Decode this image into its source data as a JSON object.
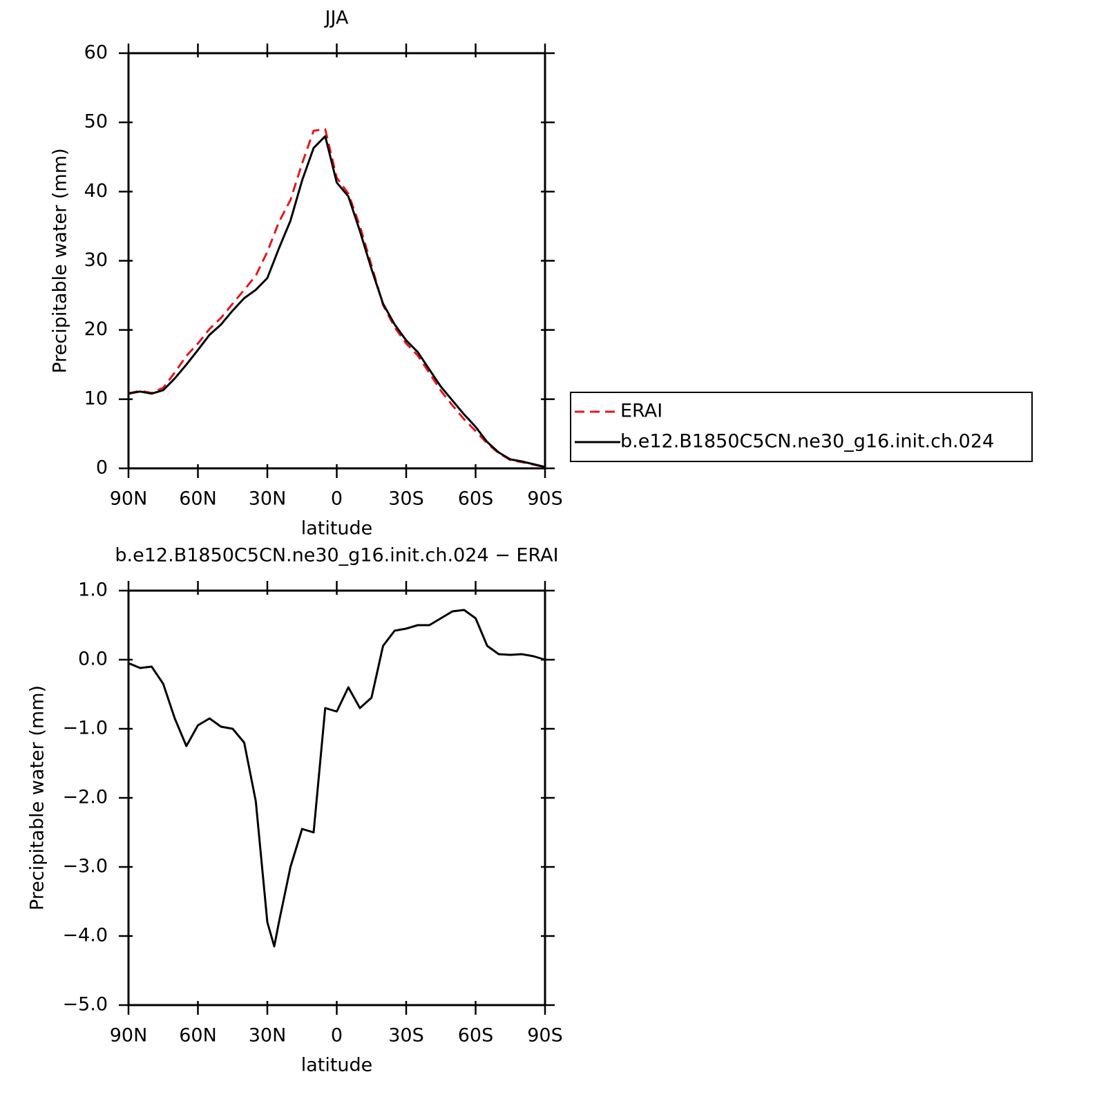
{
  "chart_data": [
    {
      "type": "line",
      "title": "JJA",
      "xlabel": "latitude",
      "ylabel": "Precipitable water (mm)",
      "x": [
        90,
        85,
        80,
        75,
        70,
        65,
        60,
        55,
        50,
        45,
        40,
        35,
        30,
        25,
        20,
        15,
        10,
        5,
        0,
        -5,
        -10,
        -15,
        -20,
        -25,
        -30,
        -35,
        -40,
        -45,
        -50,
        -55,
        -60,
        -65,
        -70,
        -75,
        -80,
        -85,
        -90
      ],
      "xlim": [
        90,
        -90
      ],
      "xticks": [
        {
          "value": 90,
          "label": "90N"
        },
        {
          "value": 60,
          "label": "60N"
        },
        {
          "value": 30,
          "label": "30N"
        },
        0,
        {
          "value": -30,
          "label": "30S"
        },
        {
          "value": -60,
          "label": "60S"
        },
        {
          "value": -90,
          "label": "90S"
        }
      ],
      "ylim": [
        0,
        60
      ],
      "yticks": [
        0,
        10,
        20,
        30,
        40,
        50,
        60
      ],
      "legend": "right",
      "series": [
        {
          "name": "ERAI",
          "color": "#e8141c",
          "dashed": true,
          "values": [
            10.85,
            11.2,
            10.9,
            11.65,
            13.85,
            16.25,
            18.05,
            20.15,
            21.75,
            23.8,
            25.8,
            27.85,
            31.3,
            35.6,
            38.8,
            44.05,
            48.8,
            49.0,
            42.0,
            39.7,
            35.0,
            29.35,
            23.6,
            20.4,
            18.05,
            16.3,
            13.8,
            11.2,
            9.1,
            7.1,
            5.4,
            3.6,
            2.2,
            1.2,
            0.9,
            0.55,
            0.2
          ]
        },
        {
          "name": "b.e12.B1850C5CN.ne30_g16.init.ch.024",
          "color": "#000000",
          "dashed": false,
          "values": [
            10.8,
            11.1,
            10.8,
            11.3,
            13.0,
            15.0,
            17.1,
            19.3,
            20.8,
            22.8,
            24.6,
            25.8,
            27.5,
            31.8,
            35.8,
            41.6,
            46.3,
            48.0,
            41.3,
            39.3,
            34.3,
            28.8,
            23.8,
            20.8,
            18.5,
            16.8,
            14.3,
            11.8,
            9.8,
            7.8,
            6.0,
            3.8,
            2.3,
            1.3,
            1.0,
            0.6,
            0.2
          ]
        }
      ]
    },
    {
      "type": "line",
      "title": "b.e12.B1850C5CN.ne30_g16.init.ch.024 − ERAI",
      "xlabel": "latitude",
      "ylabel": "Precipitable water (mm)",
      "x": [
        90,
        85,
        80,
        75,
        70,
        65,
        60,
        55,
        50,
        45,
        40,
        35,
        30,
        27,
        25,
        20,
        15,
        10,
        5,
        0,
        -5,
        -10,
        -15,
        -20,
        -25,
        -30,
        -35,
        -40,
        -45,
        -50,
        -55,
        -60,
        -65,
        -70,
        -75,
        -80,
        -85,
        -90
      ],
      "xlim": [
        90,
        -90
      ],
      "xticks": [
        {
          "value": 90,
          "label": "90N"
        },
        {
          "value": 60,
          "label": "60N"
        },
        {
          "value": 30,
          "label": "30N"
        },
        0,
        {
          "value": -30,
          "label": "30S"
        },
        {
          "value": -60,
          "label": "60S"
        },
        {
          "value": -90,
          "label": "90S"
        }
      ],
      "ylim": [
        -5,
        1
      ],
      "yticks": [
        {
          "value": 1,
          "label": "1.0"
        },
        {
          "value": 0,
          "label": "0.0"
        },
        {
          "value": -1,
          "label": "−1.0"
        },
        {
          "value": -2,
          "label": "−2.0"
        },
        {
          "value": -3,
          "label": "−3.0"
        },
        {
          "value": -4,
          "label": "−4.0"
        },
        {
          "value": -5,
          "label": "−5.0"
        }
      ],
      "series": [
        {
          "color": "#000000",
          "dashed": false,
          "values": [
            -0.05,
            -0.12,
            -0.1,
            -0.35,
            -0.85,
            -1.25,
            -0.95,
            -0.85,
            -0.97,
            -1.0,
            -1.2,
            -2.05,
            -3.8,
            -4.15,
            -3.8,
            -3.0,
            -2.45,
            -2.5,
            -0.7,
            -0.75,
            -0.4,
            -0.7,
            -0.55,
            0.2,
            0.42,
            0.45,
            0.5,
            0.5,
            0.6,
            0.7,
            0.72,
            0.6,
            0.2,
            0.08,
            0.07,
            0.08,
            0.05,
            0.0
          ]
        }
      ]
    }
  ]
}
